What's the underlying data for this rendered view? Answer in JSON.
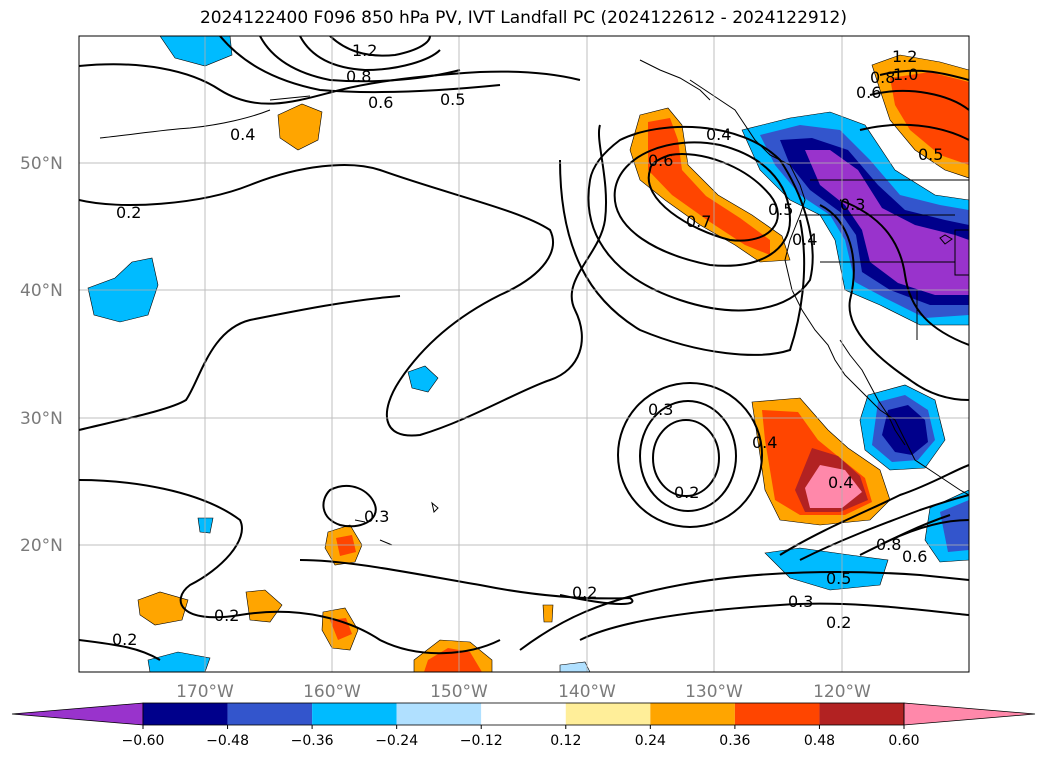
{
  "title": "2024122400 F096 850 hPa PV, IVT Landfall PC (2024122612 - 2024122912)",
  "lat_labels": [
    "50°N",
    "40°N",
    "30°N",
    "20°N"
  ],
  "lon_labels": [
    "170°W",
    "160°W",
    "150°W",
    "140°W",
    "130°W",
    "120°W"
  ],
  "colorbar": {
    "colors": [
      "#9933cc",
      "#00008b",
      "#3355cc",
      "#00bbff",
      "#b0e0ff",
      "#ffffff",
      "#ffee99",
      "#ffa500",
      "#ff4500",
      "#b22222",
      "#ff88aa"
    ],
    "ticks": [
      "−0.60",
      "−0.48",
      "−0.36",
      "−0.24",
      "−0.12",
      "0.12",
      "0.24",
      "0.36",
      "0.48",
      "0.60"
    ]
  },
  "contour_labels": [
    "1.2",
    "1.0",
    "0.8",
    "0.6",
    "0.5",
    "0.4",
    "0.2",
    "0.6",
    "0.7",
    "0.4",
    "0.5",
    "0.4",
    "0.3",
    "0.3",
    "0.2",
    "0.4",
    "0.4",
    "0.3",
    "0.8",
    "0.6",
    "0.5",
    "0.3",
    "0.2",
    "0.2",
    "0.2",
    "0.2",
    "1.2",
    "0.8",
    "0.6",
    "0.5"
  ]
}
